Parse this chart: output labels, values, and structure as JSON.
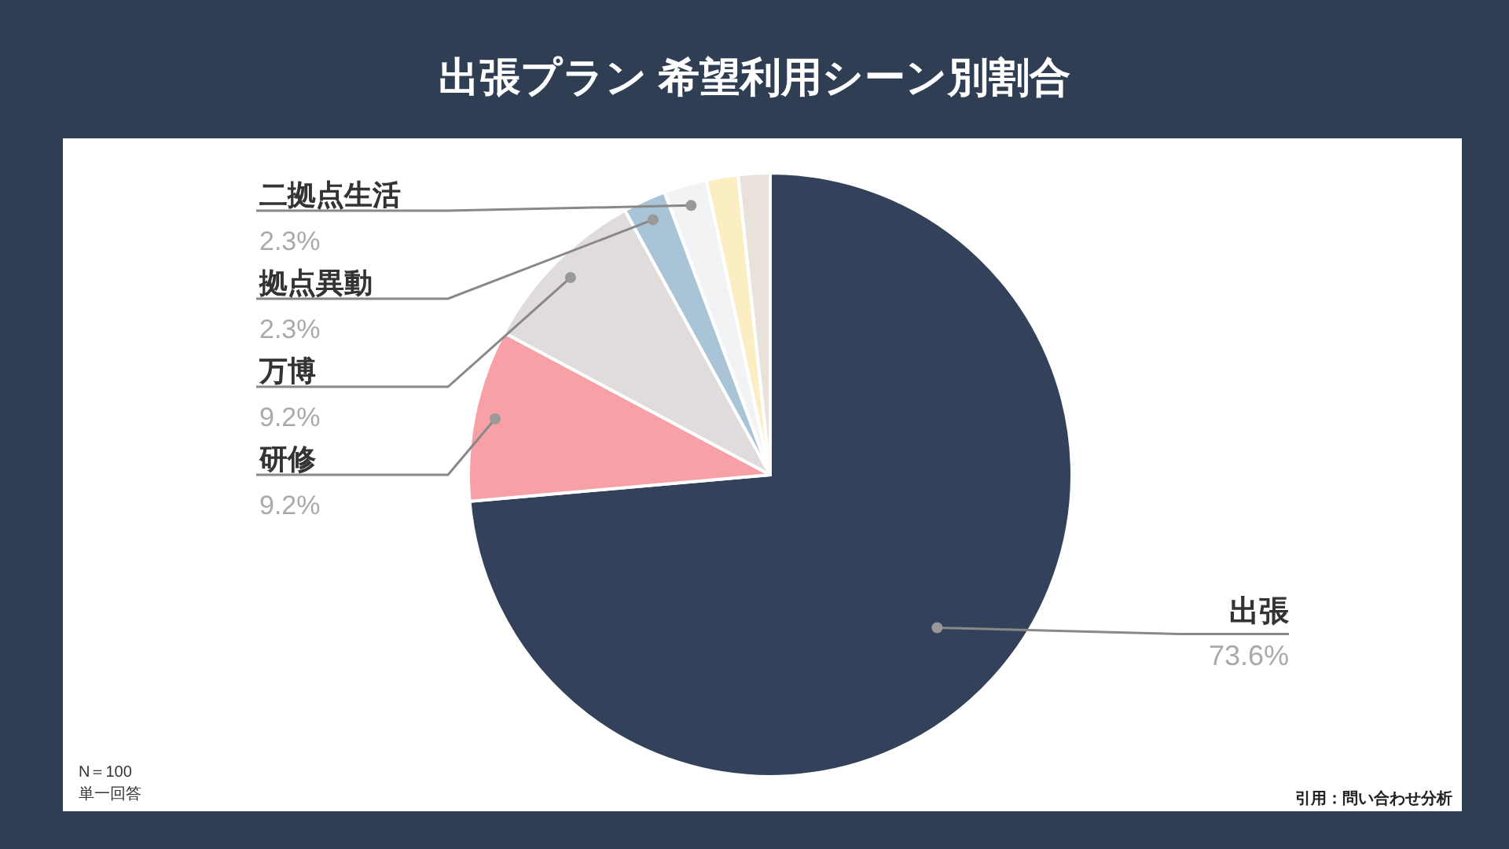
{
  "chart_data": {
    "type": "pie",
    "title": "出張プラン 希望利用シーン別割合",
    "categories": [
      "出張",
      "研修",
      "万博",
      "拠点異動",
      "二拠点生活",
      null,
      null
    ],
    "values": [
      73.6,
      9.2,
      9.2,
      2.3,
      2.3,
      1.7,
      1.7
    ],
    "colors": [
      "#33425a",
      "#f7a0a6",
      "#e0dcdc",
      "#a9c4d6",
      "#f1f3f5",
      "#fbeec2",
      "#e8e2da"
    ],
    "value_labels": [
      "73.6%",
      "9.2%",
      "9.2%",
      "2.3%",
      "2.3%",
      null,
      null
    ],
    "annotations": [
      "N＝100",
      "単一回答",
      "引用：問い合わせ分析"
    ]
  }
}
